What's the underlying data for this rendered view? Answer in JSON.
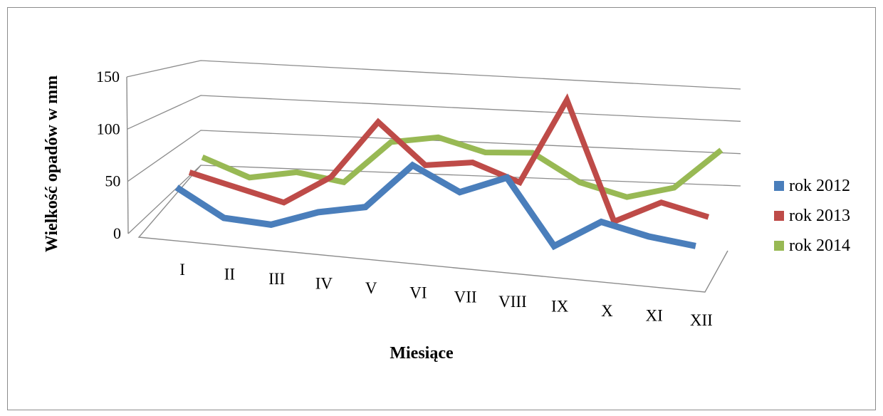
{
  "chart_data": {
    "type": "line",
    "style": "3d",
    "xlabel": "Miesiące",
    "ylabel": "Wielkość opadów w mm",
    "ylim": [
      0,
      150
    ],
    "yticks": [
      0,
      50,
      100,
      150
    ],
    "categories": [
      "I",
      "II",
      "III",
      "IV",
      "V",
      "VI",
      "VII",
      "VIII",
      "IX",
      "X",
      "XI",
      "XII"
    ],
    "series": [
      {
        "name": "rok 2012",
        "color": "#4a7ebb",
        "values": [
          45,
          20,
          18,
          35,
          45,
          92,
          70,
          90,
          25,
          55,
          45,
          40
        ]
      },
      {
        "name": "rok 2013",
        "color": "#be4b48",
        "values": [
          50,
          40,
          30,
          60,
          120,
          82,
          90,
          75,
          165,
          45,
          70,
          60
        ]
      },
      {
        "name": "rok 2014",
        "color": "#98b954",
        "values": [
          55,
          40,
          50,
          45,
          90,
          100,
          90,
          95,
          70,
          60,
          75,
          120
        ]
      }
    ],
    "grid": true,
    "legend": "right"
  }
}
